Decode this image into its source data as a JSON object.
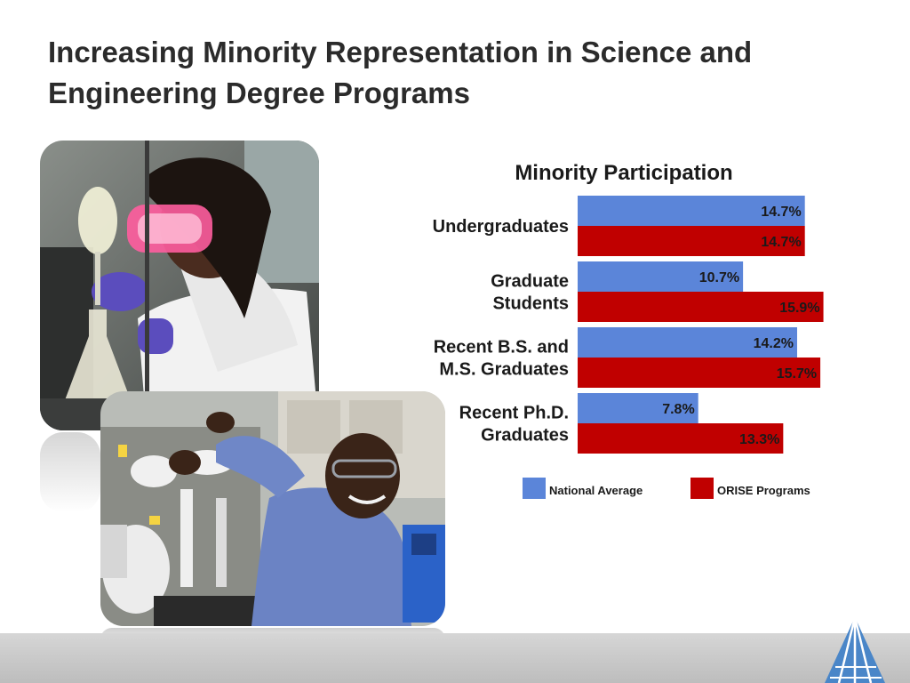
{
  "slide": {
    "title": "Increasing Minority Representation in Science and\nEngineering Degree Programs"
  },
  "colors": {
    "national": "#5b85d9",
    "orise": "#c00000",
    "footer": "#c8c8c8",
    "logo": "#4a86c8"
  },
  "photos": [
    {
      "icon": "lab-scientist-goggles-photo"
    },
    {
      "icon": "lab-scientist-equipment-photo"
    }
  ],
  "chart_data": {
    "type": "bar",
    "orientation": "horizontal",
    "title": "Minority Participation",
    "categories": [
      [
        "Undergraduates"
      ],
      [
        "Graduate",
        "Students"
      ],
      [
        "Recent B.S. and",
        "M.S. Graduates"
      ],
      [
        "Recent Ph.D.",
        "Graduates"
      ]
    ],
    "series": [
      {
        "name": "National Average",
        "color": "#5b85d9",
        "values": [
          14.7,
          10.7,
          14.2,
          7.8
        ],
        "labels": [
          "14.7%",
          "10.7%",
          "14.2%",
          "7.8%"
        ]
      },
      {
        "name": "ORISE Programs",
        "color": "#c00000",
        "values": [
          14.7,
          15.9,
          15.7,
          13.3
        ],
        "labels": [
          "14.7%",
          "15.9%",
          "15.7%",
          "13.3%"
        ]
      }
    ],
    "xlim": [
      0,
      16.5
    ],
    "grid": false,
    "legend_position": "bottom"
  }
}
